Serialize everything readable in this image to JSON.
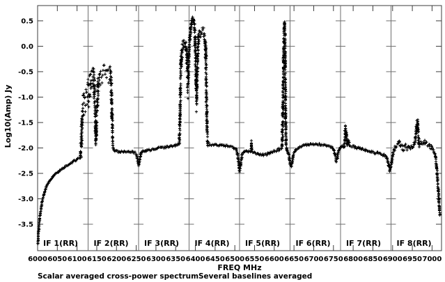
{
  "figure": {
    "background": "#ffffff",
    "frame_color": "#3c3c3c",
    "divider_color": "#6e6e6e",
    "data_color": "#000000",
    "text_color": "#000000"
  },
  "chart_data": {
    "type": "scatter",
    "marker": "+",
    "title": "",
    "xlabel": "FREQ MHz",
    "ylabel": "Log10(Amp) Jy",
    "captions": {
      "left": "Scalar averaged cross-power spectrum",
      "right": "Several baselines averaged"
    },
    "xlim": [
      6000,
      7024
    ],
    "ylim": [
      -4.02,
      0.8
    ],
    "grid": false,
    "x_ticks": [
      6000,
      6050,
      6100,
      6150,
      6200,
      6250,
      6300,
      6350,
      6400,
      6450,
      6500,
      6550,
      6600,
      6650,
      6700,
      6750,
      6800,
      6850,
      6900,
      6950,
      7000
    ],
    "y_ticks": [
      0.5,
      0.0,
      -0.5,
      -1.0,
      -1.5,
      -2.0,
      -2.5,
      -3.0,
      -3.5
    ],
    "if_panels": [
      {
        "label": "IF 1(RR)",
        "start": 6000,
        "end": 6128
      },
      {
        "label": "IF 2(RR)",
        "start": 6128,
        "end": 6256
      },
      {
        "label": "IF 3(RR)",
        "start": 6256,
        "end": 6384
      },
      {
        "label": "IF 4(RR)",
        "start": 6384,
        "end": 6512
      },
      {
        "label": "IF 5(RR)",
        "start": 6512,
        "end": 6640
      },
      {
        "label": "IF 6(RR)",
        "start": 6640,
        "end": 6768
      },
      {
        "label": "IF 7(RR)",
        "start": 6768,
        "end": 6896
      },
      {
        "label": "IF 8(RR)",
        "start": 6896,
        "end": 7024
      }
    ],
    "series": [
      {
        "name": "scalar averaged cross-power spectrum (several baselines averaged)",
        "points_format": [
          "freq_MHz",
          "log10_amp_Jy",
          "scatter_sigma"
        ],
        "points": [
          [
            6001,
            -3.88,
            0.01
          ],
          [
            6002,
            -3.72,
            0.01
          ],
          [
            6003,
            -3.58,
            0.015
          ],
          [
            6005,
            -3.42,
            0.015
          ],
          [
            6007,
            -3.28,
            0.015
          ],
          [
            6010,
            -3.12,
            0.015
          ],
          [
            6013,
            -3.0,
            0.015
          ],
          [
            6017,
            -2.88,
            0.015
          ],
          [
            6022,
            -2.77,
            0.015
          ],
          [
            6028,
            -2.68,
            0.015
          ],
          [
            6035,
            -2.6,
            0.015
          ],
          [
            6043,
            -2.53,
            0.015
          ],
          [
            6052,
            -2.47,
            0.015
          ],
          [
            6062,
            -2.41,
            0.015
          ],
          [
            6073,
            -2.35,
            0.015
          ],
          [
            6085,
            -2.29,
            0.015
          ],
          [
            6097,
            -2.24,
            0.015
          ],
          [
            6108,
            -2.19,
            0.02
          ],
          [
            6111,
            -1.9,
            0.3
          ],
          [
            6113,
            -1.35,
            0.3
          ],
          [
            6116,
            -1.2,
            0.28
          ],
          [
            6120,
            -1.1,
            0.25
          ],
          [
            6124,
            -1.05,
            0.28
          ],
          [
            6128,
            -0.95,
            0.3
          ],
          [
            6132,
            -0.8,
            0.3
          ],
          [
            6136,
            -0.6,
            0.22
          ],
          [
            6140,
            -0.55,
            0.22
          ],
          [
            6143,
            -0.75,
            0.3
          ],
          [
            6146,
            -1.3,
            0.35
          ],
          [
            6148,
            -1.85,
            0.12
          ],
          [
            6151,
            -1.1,
            0.35
          ],
          [
            6154,
            -0.75,
            0.25
          ],
          [
            6158,
            -0.6,
            0.22
          ],
          [
            6163,
            -0.62,
            0.22
          ],
          [
            6168,
            -0.58,
            0.22
          ],
          [
            6173,
            -0.52,
            0.2
          ],
          [
            6178,
            -0.55,
            0.2
          ],
          [
            6183,
            -0.6,
            0.22
          ],
          [
            6186,
            -0.75,
            0.25
          ],
          [
            6189,
            -1.4,
            0.35
          ],
          [
            6191,
            -1.98,
            0.06
          ],
          [
            6195,
            -2.06,
            0.02
          ],
          [
            6205,
            -2.07,
            0.02
          ],
          [
            6220,
            -2.07,
            0.02
          ],
          [
            6235,
            -2.07,
            0.02
          ],
          [
            6246,
            -2.09,
            0.02
          ],
          [
            6251,
            -2.14,
            0.02
          ],
          [
            6254,
            -2.26,
            0.02
          ],
          [
            6256,
            -2.34,
            0.02
          ],
          [
            6259,
            -2.24,
            0.02
          ],
          [
            6262,
            -2.1,
            0.02
          ],
          [
            6268,
            -2.06,
            0.02
          ],
          [
            6280,
            -2.04,
            0.02
          ],
          [
            6300,
            -2.01,
            0.02
          ],
          [
            6320,
            -1.99,
            0.02
          ],
          [
            6340,
            -1.96,
            0.02
          ],
          [
            6355,
            -1.94,
            0.02
          ],
          [
            6359,
            -1.92,
            0.03
          ],
          [
            6361,
            -1.4,
            0.35
          ],
          [
            6363,
            -0.5,
            0.3
          ],
          [
            6365,
            -0.15,
            0.15
          ],
          [
            6368,
            -0.02,
            0.13
          ],
          [
            6371,
            0.08,
            0.1
          ],
          [
            6374,
            0.05,
            0.12
          ],
          [
            6377,
            -0.05,
            0.15
          ],
          [
            6379,
            -0.3,
            0.25
          ],
          [
            6381,
            -0.7,
            0.35
          ],
          [
            6383,
            -0.4,
            0.3
          ],
          [
            6385,
            0.0,
            0.2
          ],
          [
            6388,
            0.35,
            0.12
          ],
          [
            6391,
            0.5,
            0.06
          ],
          [
            6393,
            0.55,
            0.04
          ],
          [
            6395,
            0.52,
            0.06
          ],
          [
            6397,
            0.42,
            0.1
          ],
          [
            6399,
            0.2,
            0.18
          ],
          [
            6401,
            -0.35,
            0.4
          ],
          [
            6403,
            -1.05,
            0.25
          ],
          [
            6405,
            -0.45,
            0.35
          ],
          [
            6407,
            0.05,
            0.18
          ],
          [
            6410,
            0.22,
            0.1
          ],
          [
            6414,
            0.28,
            0.09
          ],
          [
            6418,
            0.3,
            0.09
          ],
          [
            6421,
            0.26,
            0.1
          ],
          [
            6424,
            0.2,
            0.12
          ],
          [
            6426,
            -0.1,
            0.3
          ],
          [
            6428,
            -0.9,
            0.5
          ],
          [
            6430,
            -1.7,
            0.2
          ],
          [
            6432,
            -1.92,
            0.04
          ],
          [
            6436,
            -1.93,
            0.02
          ],
          [
            6450,
            -1.94,
            0.02
          ],
          [
            6465,
            -1.95,
            0.02
          ],
          [
            6480,
            -1.96,
            0.02
          ],
          [
            6495,
            -1.99,
            0.02
          ],
          [
            6503,
            -2.03,
            0.02
          ],
          [
            6507,
            -2.12,
            0.02
          ],
          [
            6510,
            -2.3,
            0.03
          ],
          [
            6512,
            -2.48,
            0.03
          ],
          [
            6515,
            -2.33,
            0.03
          ],
          [
            6518,
            -2.15,
            0.02
          ],
          [
            6522,
            -2.08,
            0.02
          ],
          [
            6530,
            -2.06,
            0.02
          ],
          [
            6541,
            -2.07,
            0.02
          ],
          [
            6542,
            -1.88,
            0.04
          ],
          [
            6543,
            -2.07,
            0.02
          ],
          [
            6552,
            -2.1,
            0.02
          ],
          [
            6565,
            -2.13,
            0.02
          ],
          [
            6578,
            -2.13,
            0.02
          ],
          [
            6590,
            -2.1,
            0.02
          ],
          [
            6602,
            -2.06,
            0.02
          ],
          [
            6612,
            -2.03,
            0.03
          ],
          [
            6619,
            -2.01,
            0.03
          ],
          [
            6622,
            -1.3,
            0.5
          ],
          [
            6624,
            0.0,
            0.3
          ],
          [
            6625,
            0.38,
            0.1
          ],
          [
            6626,
            0.46,
            0.05
          ],
          [
            6627,
            0.3,
            0.15
          ],
          [
            6628,
            -0.9,
            0.6
          ],
          [
            6630,
            -1.95,
            0.08
          ],
          [
            6633,
            -2.05,
            0.02
          ],
          [
            6637,
            -2.15,
            0.02
          ],
          [
            6640,
            -2.32,
            0.04
          ],
          [
            6643,
            -2.38,
            0.04
          ],
          [
            6646,
            -2.25,
            0.03
          ],
          [
            6650,
            -2.1,
            0.02
          ],
          [
            6656,
            -2.02,
            0.02
          ],
          [
            6668,
            -1.97,
            0.02
          ],
          [
            6682,
            -1.94,
            0.02
          ],
          [
            6698,
            -1.92,
            0.02
          ],
          [
            6714,
            -1.93,
            0.02
          ],
          [
            6728,
            -1.95,
            0.02
          ],
          [
            6742,
            -1.97,
            0.02
          ],
          [
            6750,
            -2.02,
            0.02
          ],
          [
            6754,
            -2.12,
            0.03
          ],
          [
            6757,
            -2.28,
            0.03
          ],
          [
            6760,
            -2.18,
            0.03
          ],
          [
            6763,
            -2.06,
            0.02
          ],
          [
            6767,
            -2.0,
            0.02
          ],
          [
            6772,
            -1.98,
            0.02
          ],
          [
            6777,
            -1.96,
            0.03
          ],
          [
            6779,
            -1.8,
            0.12
          ],
          [
            6781,
            -1.6,
            0.08
          ],
          [
            6783,
            -1.75,
            0.12
          ],
          [
            6785,
            -1.95,
            0.05
          ],
          [
            6788,
            -1.87,
            0.07
          ],
          [
            6791,
            -1.97,
            0.03
          ],
          [
            6798,
            -1.97,
            0.02
          ],
          [
            6812,
            -2.0,
            0.02
          ],
          [
            6826,
            -2.03,
            0.02
          ],
          [
            6840,
            -2.06,
            0.02
          ],
          [
            6854,
            -2.09,
            0.02
          ],
          [
            6868,
            -2.12,
            0.03
          ],
          [
            6880,
            -2.15,
            0.03
          ],
          [
            6886,
            -2.2,
            0.03
          ],
          [
            6890,
            -2.33,
            0.04
          ],
          [
            6893,
            -2.44,
            0.04
          ],
          [
            6897,
            -2.3,
            0.04
          ],
          [
            6901,
            -2.1,
            0.04
          ],
          [
            6906,
            -2.0,
            0.04
          ],
          [
            6912,
            -1.96,
            0.05
          ],
          [
            6917,
            -1.9,
            0.06
          ],
          [
            6921,
            -1.96,
            0.05
          ],
          [
            6927,
            -2.01,
            0.05
          ],
          [
            6933,
            -1.97,
            0.06
          ],
          [
            6939,
            -2.01,
            0.05
          ],
          [
            6945,
            -1.96,
            0.06
          ],
          [
            6951,
            -1.97,
            0.05
          ],
          [
            6957,
            -1.88,
            0.1
          ],
          [
            6961,
            -1.6,
            0.15
          ],
          [
            6963,
            -1.48,
            0.1
          ],
          [
            6965,
            -1.75,
            0.15
          ],
          [
            6968,
            -1.93,
            0.06
          ],
          [
            6974,
            -1.9,
            0.06
          ],
          [
            6980,
            -1.88,
            0.05
          ],
          [
            6986,
            -1.92,
            0.05
          ],
          [
            6992,
            -1.94,
            0.04
          ],
          [
            6998,
            -1.99,
            0.04
          ],
          [
            7003,
            -2.04,
            0.03
          ],
          [
            7007,
            -2.1,
            0.03
          ],
          [
            7010,
            -2.25,
            0.05
          ],
          [
            7013,
            -2.5,
            0.05
          ],
          [
            7015,
            -2.75,
            0.05
          ],
          [
            7017,
            -3.0,
            0.04
          ],
          [
            7019,
            -3.2,
            0.03
          ],
          [
            7020,
            -3.32,
            0.02
          ]
        ]
      }
    ]
  }
}
